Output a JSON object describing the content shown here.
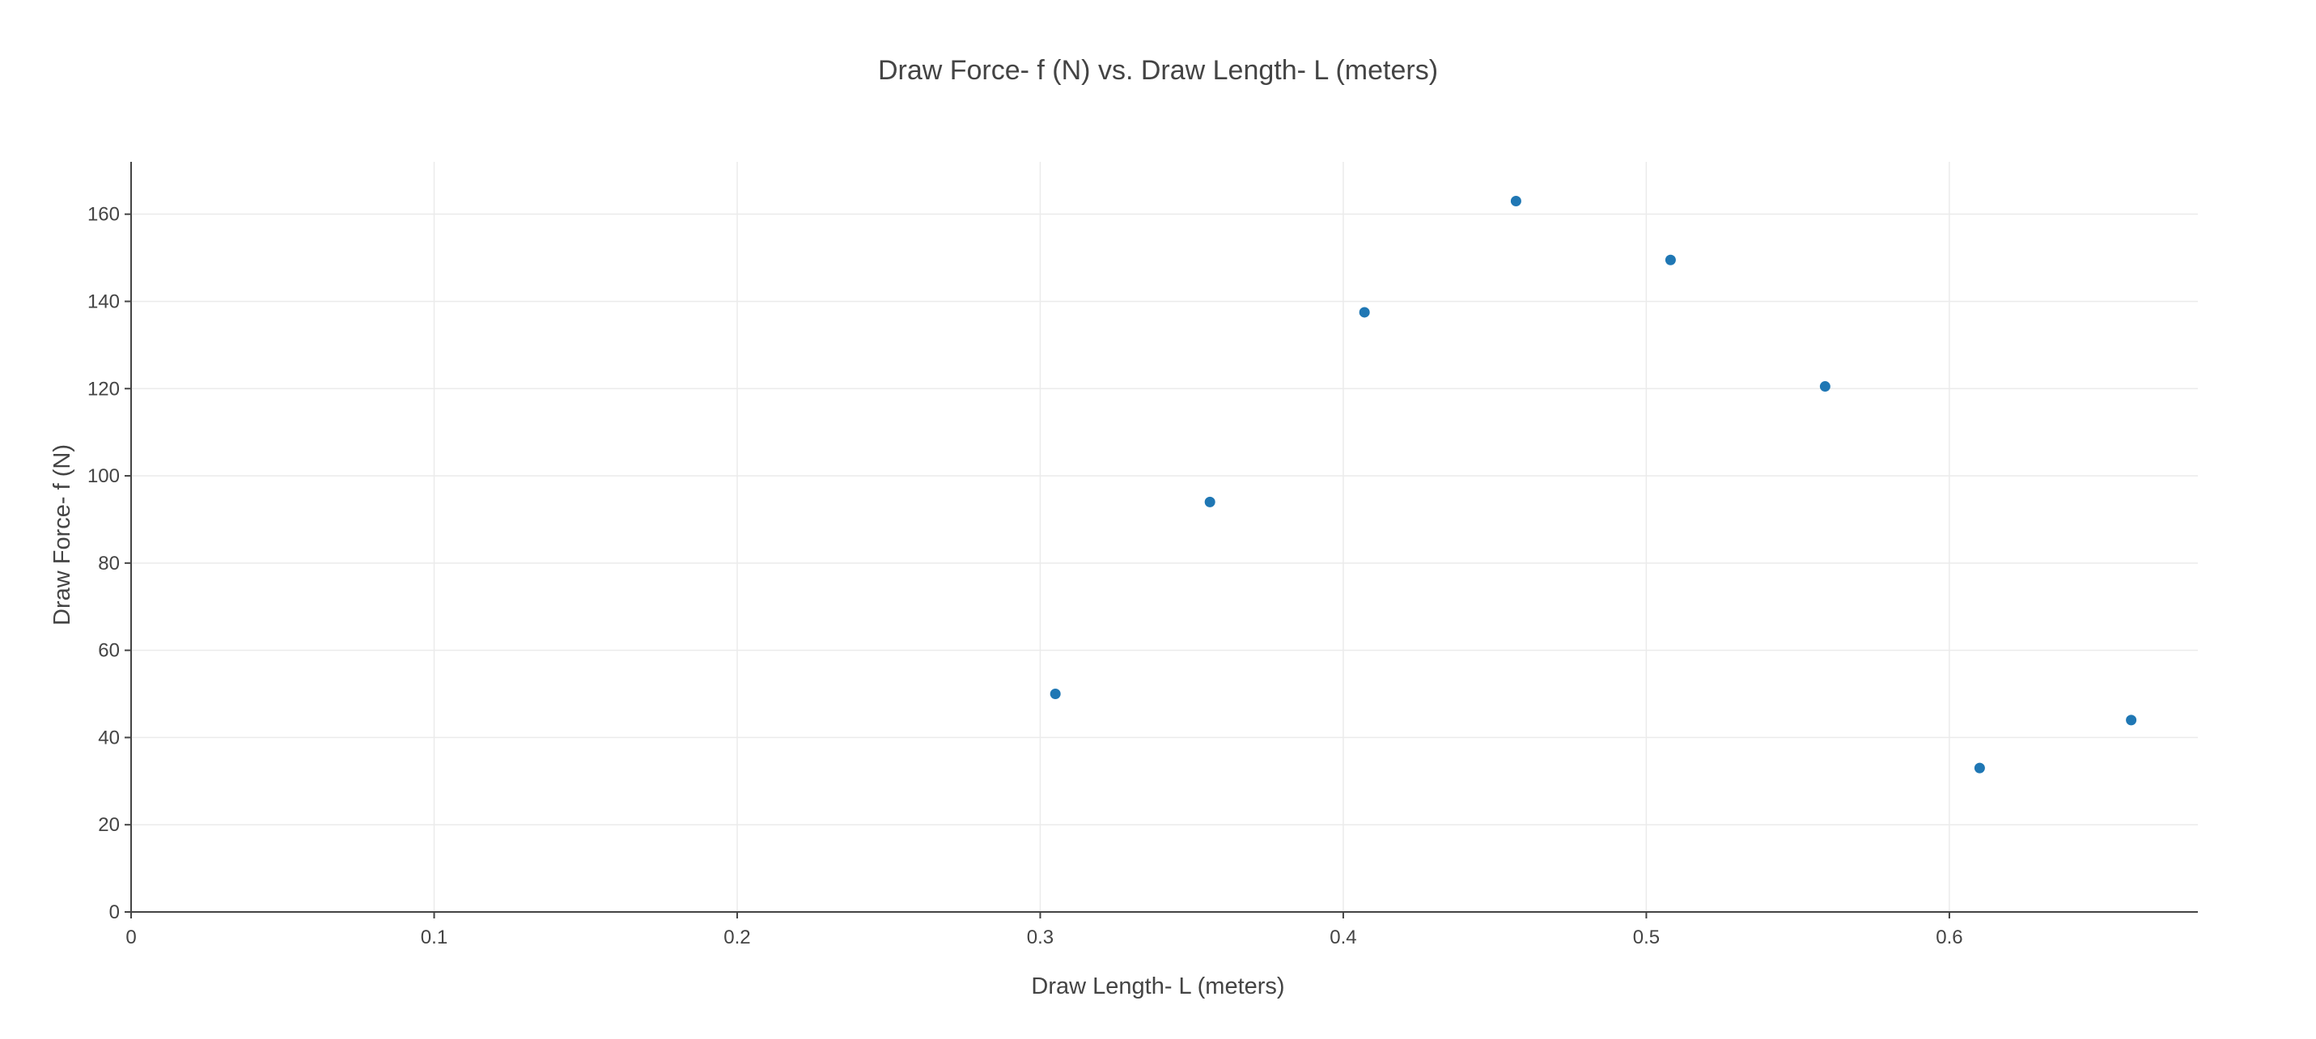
{
  "chart_data": {
    "type": "scatter",
    "title": "Draw Force- f (N) vs. Draw Length- L (meters)",
    "xlabel": "Draw Length- L (meters)",
    "ylabel": "Draw Force- f (N)",
    "xlim": [
      0,
      0.682
    ],
    "ylim": [
      0,
      172
    ],
    "x_ticks": [
      0,
      0.1,
      0.2,
      0.3,
      0.4,
      0.5,
      0.6
    ],
    "x_tick_labels": [
      "0",
      "0.1",
      "0.2",
      "0.3",
      "0.4",
      "0.5",
      "0.6"
    ],
    "y_ticks": [
      0,
      20,
      40,
      60,
      80,
      100,
      120,
      140,
      160
    ],
    "y_tick_labels": [
      "0",
      "20",
      "40",
      "60",
      "80",
      "100",
      "120",
      "140",
      "160"
    ],
    "grid": true,
    "marker_color": "#1f77b4",
    "series": [
      {
        "x": [
          0.305,
          0.356,
          0.407,
          0.457,
          0.508,
          0.559,
          0.61,
          0.66
        ],
        "y": [
          50,
          94,
          137.5,
          163,
          149.5,
          120.5,
          33,
          44
        ]
      }
    ]
  }
}
